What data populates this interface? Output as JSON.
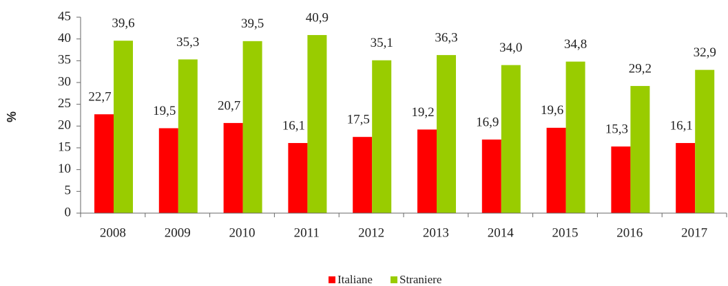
{
  "chart_data": {
    "type": "bar",
    "y_label": "%",
    "categories": [
      "2008",
      "2009",
      "2010",
      "2011",
      "2012",
      "2013",
      "2014",
      "2015",
      "2016",
      "2017"
    ],
    "series": [
      {
        "name": "Italiane",
        "color": "#ff0000",
        "values": [
          22.7,
          19.5,
          20.7,
          16.1,
          17.5,
          19.2,
          16.9,
          19.6,
          15.3,
          16.1
        ],
        "value_labels": [
          "22,7",
          "19,5",
          "20,7",
          "16,1",
          "17,5",
          "19,2",
          "16,9",
          "19,6",
          "15,3",
          "16,1"
        ]
      },
      {
        "name": "Straniere",
        "color": "#99cc00",
        "values": [
          39.6,
          35.3,
          39.5,
          40.9,
          35.1,
          36.3,
          34.0,
          34.8,
          29.2,
          32.9
        ],
        "value_labels": [
          "39,6",
          "35,3",
          "39,5",
          "40,9",
          "35,1",
          "36,3",
          "34,0",
          "34,8",
          "29,2",
          "32,9"
        ]
      }
    ],
    "ylim": [
      0,
      45
    ],
    "yticks": [
      0,
      5,
      10,
      15,
      20,
      25,
      30,
      35,
      40,
      45
    ],
    "legend": "bottom"
  }
}
